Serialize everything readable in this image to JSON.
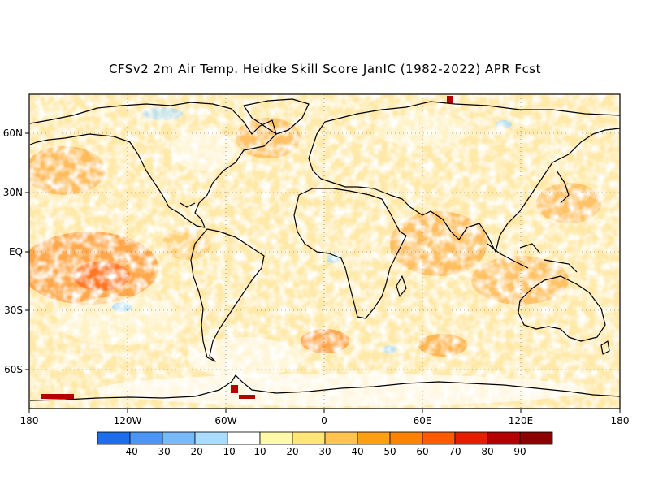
{
  "title": "CFSv2 2m Air Temp. Heidke Skill Score JanIC (1982-2022) APR Fcst",
  "map": {
    "projection": "cylindrical equidistant",
    "lon_range": [
      -180,
      180
    ],
    "lat_range": [
      -80,
      80
    ],
    "lon_tick_labels": [
      "180",
      "120W",
      "60W",
      "0",
      "60E",
      "120E",
      "180"
    ],
    "lat_tick_labels": [
      "60N",
      "30N",
      "EQ",
      "30S",
      "60S"
    ],
    "grid": "dotted"
  },
  "colorbar": {
    "labels": [
      "-40",
      "-30",
      "-20",
      "-10",
      "10",
      "20",
      "30",
      "40",
      "50",
      "60",
      "70",
      "80",
      "90"
    ],
    "colors": [
      "#1e6eeb",
      "#4b96f5",
      "#78b9fa",
      "#aadcff",
      "#ffffff",
      "#fffaaa",
      "#ffe678",
      "#ffc350",
      "#ffa014",
      "#ff8200",
      "#ff5a00",
      "#e61e00",
      "#b40000",
      "#8c0000"
    ]
  }
}
